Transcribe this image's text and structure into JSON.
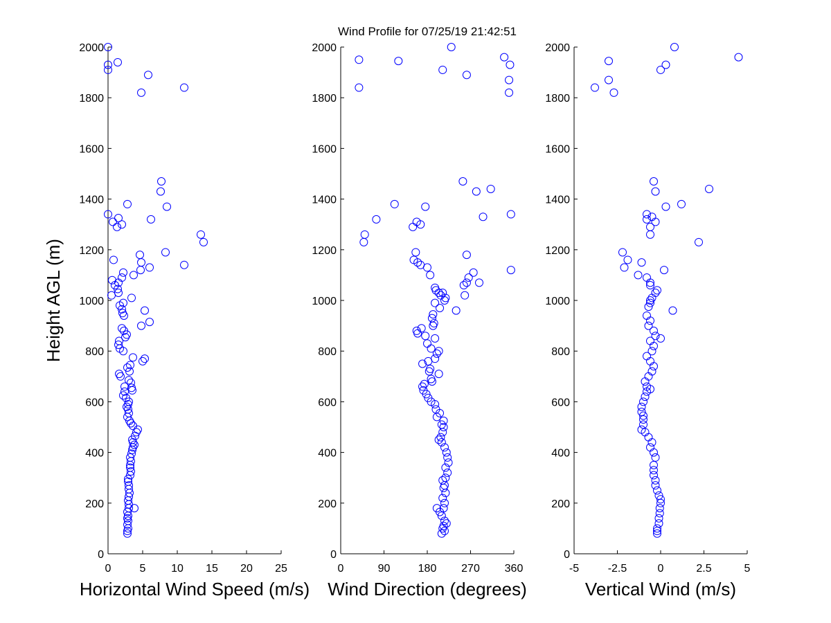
{
  "figure_title": "Wind Profile for  07/25/19 21:42:51",
  "marker_color": "#0000ff",
  "chart_data": [
    {
      "type": "scatter",
      "title": "",
      "xlabel": "Horizontal Wind Speed (m/s)",
      "ylabel": "Height AGL (m)",
      "xlim": [
        0,
        25
      ],
      "ylim": [
        0,
        2000
      ],
      "xticks": [
        0,
        5,
        10,
        15,
        20,
        25
      ],
      "xtick_labels": [
        "0",
        "5",
        "10",
        "15",
        "20",
        "25"
      ],
      "yticks": [
        0,
        200,
        400,
        600,
        800,
        1000,
        1200,
        1400,
        1600,
        1800,
        2000
      ],
      "ytick_labels": [
        "0",
        "200",
        "400",
        "600",
        "800",
        "1000",
        "1200",
        "1400",
        "1600",
        "1800",
        "2000"
      ],
      "points": [
        [
          2.8,
          80
        ],
        [
          2.8,
          90
        ],
        [
          2.9,
          100
        ],
        [
          2.8,
          115
        ],
        [
          2.9,
          130
        ],
        [
          2.8,
          140
        ],
        [
          2.9,
          150
        ],
        [
          2.8,
          165
        ],
        [
          3.8,
          180
        ],
        [
          3.0,
          180
        ],
        [
          3.0,
          195
        ],
        [
          2.9,
          210
        ],
        [
          3.0,
          225
        ],
        [
          3.1,
          240
        ],
        [
          3.0,
          255
        ],
        [
          3.0,
          270
        ],
        [
          2.9,
          285
        ],
        [
          2.9,
          295
        ],
        [
          3.2,
          310
        ],
        [
          3.3,
          325
        ],
        [
          3.2,
          340
        ],
        [
          3.2,
          350
        ],
        [
          3.3,
          365
        ],
        [
          3.2,
          380
        ],
        [
          3.4,
          395
        ],
        [
          3.5,
          410
        ],
        [
          3.6,
          420
        ],
        [
          3.8,
          430
        ],
        [
          3.6,
          440
        ],
        [
          3.5,
          450
        ],
        [
          3.9,
          465
        ],
        [
          4.1,
          480
        ],
        [
          4.3,
          490
        ],
        [
          3.6,
          505
        ],
        [
          3.3,
          515
        ],
        [
          3.1,
          525
        ],
        [
          2.8,
          540
        ],
        [
          3.0,
          555
        ],
        [
          2.9,
          570
        ],
        [
          2.7,
          580
        ],
        [
          2.9,
          590
        ],
        [
          3.0,
          600
        ],
        [
          2.6,
          615
        ],
        [
          2.2,
          625
        ],
        [
          2.4,
          640
        ],
        [
          3.5,
          645
        ],
        [
          3.4,
          655
        ],
        [
          2.4,
          660
        ],
        [
          3.3,
          675
        ],
        [
          3.0,
          685
        ],
        [
          1.8,
          700
        ],
        [
          1.6,
          710
        ],
        [
          3.1,
          720
        ],
        [
          2.8,
          735
        ],
        [
          3.2,
          745
        ],
        [
          5.0,
          760
        ],
        [
          5.3,
          770
        ],
        [
          3.6,
          775
        ],
        [
          2.2,
          800
        ],
        [
          1.7,
          810
        ],
        [
          1.5,
          825
        ],
        [
          1.6,
          840
        ],
        [
          2.5,
          855
        ],
        [
          2.7,
          865
        ],
        [
          2.3,
          880
        ],
        [
          2.0,
          890
        ],
        [
          4.8,
          900
        ],
        [
          6.0,
          915
        ],
        [
          2.3,
          940
        ],
        [
          2.1,
          950
        ],
        [
          5.3,
          960
        ],
        [
          2.0,
          965
        ],
        [
          1.7,
          980
        ],
        [
          2.2,
          990
        ],
        [
          3.4,
          1010
        ],
        [
          0.5,
          1020
        ],
        [
          1.5,
          1030
        ],
        [
          1.4,
          1045
        ],
        [
          1.0,
          1060
        ],
        [
          1.5,
          1070
        ],
        [
          0.6,
          1080
        ],
        [
          2.0,
          1090
        ],
        [
          3.7,
          1100
        ],
        [
          2.2,
          1110
        ],
        [
          4.7,
          1120
        ],
        [
          6.0,
          1130
        ],
        [
          11.0,
          1140
        ],
        [
          4.8,
          1150
        ],
        [
          0.8,
          1160
        ],
        [
          4.6,
          1180
        ],
        [
          8.3,
          1190
        ],
        [
          13.8,
          1230
        ],
        [
          13.4,
          1260
        ],
        [
          1.3,
          1290
        ],
        [
          2.0,
          1300
        ],
        [
          0.7,
          1310
        ],
        [
          6.2,
          1320
        ],
        [
          1.5,
          1325
        ],
        [
          0,
          1340
        ],
        [
          8.5,
          1370
        ],
        [
          2.8,
          1380
        ],
        [
          7.6,
          1430
        ],
        [
          7.7,
          1470
        ],
        [
          11.0,
          1840
        ],
        [
          4.8,
          1820
        ],
        [
          5.8,
          1890
        ],
        [
          0,
          1910
        ],
        [
          0,
          1930
        ],
        [
          1.4,
          1940
        ],
        [
          0,
          2000
        ]
      ]
    },
    {
      "type": "scatter",
      "title": "",
      "xlabel": "Wind Direction (degrees)",
      "ylabel": "",
      "xlim": [
        0,
        360
      ],
      "ylim": [
        0,
        2000
      ],
      "xticks": [
        0,
        90,
        180,
        270,
        360
      ],
      "xtick_labels": [
        "0",
        "90",
        "180",
        "270",
        "360"
      ],
      "yticks": [
        0,
        200,
        400,
        600,
        800,
        1000,
        1200,
        1400,
        1600,
        1800,
        2000
      ],
      "ytick_labels": [
        "0",
        "200",
        "400",
        "600",
        "800",
        "1000",
        "1200",
        "1400",
        "1600",
        "1800",
        "2000"
      ],
      "points": [
        [
          210,
          80
        ],
        [
          216,
          90
        ],
        [
          212,
          100
        ],
        [
          214,
          110
        ],
        [
          220,
          120
        ],
        [
          216,
          130
        ],
        [
          210,
          150
        ],
        [
          206,
          165
        ],
        [
          200,
          180
        ],
        [
          214,
          180
        ],
        [
          216,
          200
        ],
        [
          212,
          220
        ],
        [
          218,
          240
        ],
        [
          214,
          260
        ],
        [
          216,
          270
        ],
        [
          212,
          290
        ],
        [
          218,
          300
        ],
        [
          222,
          320
        ],
        [
          218,
          340
        ],
        [
          224,
          360
        ],
        [
          222,
          380
        ],
        [
          220,
          400
        ],
        [
          216,
          420
        ],
        [
          210,
          440
        ],
        [
          204,
          450
        ],
        [
          208,
          460
        ],
        [
          212,
          480
        ],
        [
          214,
          500
        ],
        [
          210,
          510
        ],
        [
          214,
          525
        ],
        [
          200,
          540
        ],
        [
          206,
          555
        ],
        [
          198,
          570
        ],
        [
          196,
          590
        ],
        [
          188,
          600
        ],
        [
          182,
          615
        ],
        [
          178,
          630
        ],
        [
          172,
          645
        ],
        [
          170,
          660
        ],
        [
          174,
          670
        ],
        [
          190,
          680
        ],
        [
          188,
          690
        ],
        [
          204,
          710
        ],
        [
          184,
          720
        ],
        [
          186,
          730
        ],
        [
          170,
          750
        ],
        [
          182,
          760
        ],
        [
          196,
          770
        ],
        [
          200,
          790
        ],
        [
          204,
          800
        ],
        [
          188,
          810
        ],
        [
          180,
          830
        ],
        [
          196,
          850
        ],
        [
          176,
          860
        ],
        [
          160,
          870
        ],
        [
          158,
          880
        ],
        [
          168,
          890
        ],
        [
          192,
          900
        ],
        [
          194,
          910
        ],
        [
          190,
          930
        ],
        [
          192,
          945
        ],
        [
          216,
          1000
        ],
        [
          218,
          1010
        ],
        [
          208,
          1020
        ],
        [
          204,
          1030
        ],
        [
          198,
          1040
        ],
        [
          196,
          1050
        ],
        [
          212,
          1030
        ],
        [
          206,
          970
        ],
        [
          196,
          990
        ],
        [
          240,
          960
        ],
        [
          258,
          1020
        ],
        [
          256,
          1060
        ],
        [
          262,
          1070
        ],
        [
          266,
          1090
        ],
        [
          276,
          1110
        ],
        [
          288,
          1070
        ],
        [
          186,
          1100
        ],
        [
          180,
          1130
        ],
        [
          166,
          1140
        ],
        [
          160,
          1150
        ],
        [
          152,
          1160
        ],
        [
          156,
          1190
        ],
        [
          262,
          1180
        ],
        [
          354,
          1120
        ],
        [
          48,
          1230
        ],
        [
          50,
          1260
        ],
        [
          74,
          1320
        ],
        [
          150,
          1290
        ],
        [
          158,
          1310
        ],
        [
          166,
          1300
        ],
        [
          176,
          1370
        ],
        [
          112,
          1380
        ],
        [
          296,
          1330
        ],
        [
          354,
          1340
        ],
        [
          282,
          1430
        ],
        [
          312,
          1440
        ],
        [
          254,
          1470
        ],
        [
          38,
          1840
        ],
        [
          38,
          1950
        ],
        [
          120,
          1945
        ],
        [
          212,
          1910
        ],
        [
          230,
          2000
        ],
        [
          262,
          1890
        ],
        [
          340,
          1960
        ],
        [
          350,
          1870
        ],
        [
          352,
          1930
        ],
        [
          350,
          1820
        ]
      ]
    },
    {
      "type": "scatter",
      "title": "",
      "xlabel": "Vertical Wind (m/s)",
      "ylabel": "",
      "xlim": [
        -5,
        5
      ],
      "ylim": [
        0,
        2000
      ],
      "xticks": [
        -5,
        -2.5,
        0,
        2.5,
        5
      ],
      "xtick_labels": [
        "-5",
        "-2.5",
        "0",
        "2.5",
        "5"
      ],
      "yticks": [
        0,
        200,
        400,
        600,
        800,
        1000,
        1200,
        1400,
        1600,
        1800,
        2000
      ],
      "ytick_labels": [
        "0",
        "200",
        "400",
        "600",
        "800",
        "1000",
        "1200",
        "1400",
        "1600",
        "1800",
        "2000"
      ],
      "points": [
        [
          -0.2,
          80
        ],
        [
          -0.2,
          90
        ],
        [
          -0.2,
          100
        ],
        [
          -0.1,
          120
        ],
        [
          -0.1,
          140
        ],
        [
          -0.05,
          160
        ],
        [
          -0.05,
          180
        ],
        [
          0,
          200
        ],
        [
          0,
          215
        ],
        [
          -0.1,
          230
        ],
        [
          -0.2,
          250
        ],
        [
          -0.3,
          270
        ],
        [
          -0.3,
          290
        ],
        [
          -0.4,
          310
        ],
        [
          -0.4,
          330
        ],
        [
          -0.4,
          350
        ],
        [
          -0.3,
          380
        ],
        [
          -0.4,
          400
        ],
        [
          -0.6,
          420
        ],
        [
          -0.5,
          440
        ],
        [
          -0.7,
          460
        ],
        [
          -0.9,
          480
        ],
        [
          -1.1,
          490
        ],
        [
          -1.0,
          510
        ],
        [
          -1.0,
          530
        ],
        [
          -1.0,
          545
        ],
        [
          -1.1,
          560
        ],
        [
          -1.1,
          580
        ],
        [
          -1.0,
          600
        ],
        [
          -0.9,
          620
        ],
        [
          -0.8,
          640
        ],
        [
          -0.6,
          650
        ],
        [
          -0.8,
          660
        ],
        [
          -0.9,
          680
        ],
        [
          -0.7,
          700
        ],
        [
          -0.5,
          720
        ],
        [
          -0.4,
          740
        ],
        [
          -0.6,
          760
        ],
        [
          -0.8,
          780
        ],
        [
          -0.5,
          800
        ],
        [
          -0.4,
          820
        ],
        [
          -0.6,
          840
        ],
        [
          0.0,
          850
        ],
        [
          -0.3,
          860
        ],
        [
          -0.4,
          880
        ],
        [
          -0.7,
          900
        ],
        [
          -0.6,
          920
        ],
        [
          -0.8,
          940
        ],
        [
          0.7,
          960
        ],
        [
          -0.7,
          975
        ],
        [
          -0.6,
          990
        ],
        [
          -0.6,
          1000
        ],
        [
          -0.5,
          1010
        ],
        [
          -0.3,
          1030
        ],
        [
          -0.2,
          1040
        ],
        [
          -0.6,
          1060
        ],
        [
          -0.6,
          1070
        ],
        [
          -0.8,
          1090
        ],
        [
          -1.3,
          1100
        ],
        [
          0.2,
          1120
        ],
        [
          -1.1,
          1150
        ],
        [
          -1.9,
          1160
        ],
        [
          -2.1,
          1130
        ],
        [
          -2.2,
          1190
        ],
        [
          2.2,
          1230
        ],
        [
          -0.6,
          1260
        ],
        [
          -0.6,
          1290
        ],
        [
          -0.8,
          1320
        ],
        [
          -0.5,
          1330
        ],
        [
          -0.3,
          1310
        ],
        [
          -0.8,
          1340
        ],
        [
          0.3,
          1370
        ],
        [
          1.2,
          1380
        ],
        [
          -0.3,
          1430
        ],
        [
          2.8,
          1440
        ],
        [
          -0.4,
          1470
        ],
        [
          -3.8,
          1840
        ],
        [
          -2.7,
          1820
        ],
        [
          -3.0,
          1870
        ],
        [
          -3.0,
          1945
        ],
        [
          4.5,
          1960
        ],
        [
          0,
          1910
        ],
        [
          0.3,
          1930
        ],
        [
          0.8,
          2000
        ]
      ]
    }
  ]
}
